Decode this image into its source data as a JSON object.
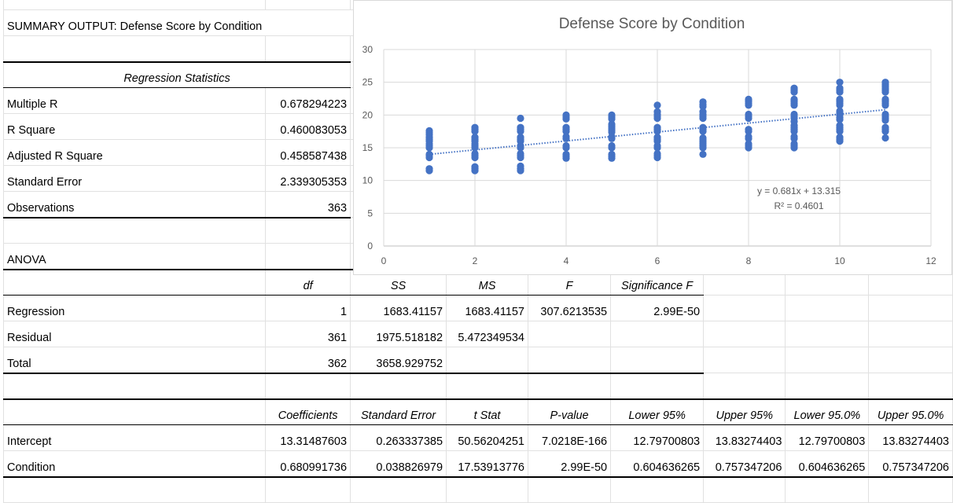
{
  "summary_title": "SUMMARY OUTPUT: Defense Score by Condition",
  "regression_statistics": {
    "header": "Regression Statistics",
    "rows": [
      {
        "label": "Multiple R",
        "value": "0.678294223"
      },
      {
        "label": "R Square",
        "value": "0.460083053"
      },
      {
        "label": "Adjusted R Square",
        "value": "0.458587438"
      },
      {
        "label": "Standard Error",
        "value": "2.339305353"
      },
      {
        "label": "Observations",
        "value": "363"
      }
    ]
  },
  "anova": {
    "label": "ANOVA",
    "headers": [
      "",
      "df",
      "SS",
      "MS",
      "F",
      "Significance F"
    ],
    "rows": [
      [
        "Regression",
        "1",
        "1683.41157",
        "1683.41157",
        "307.6213535",
        "2.99E-50"
      ],
      [
        "Residual",
        "361",
        "1975.518182",
        "5.472349534",
        "",
        ""
      ],
      [
        "Total",
        "362",
        "3658.929752",
        "",
        "",
        ""
      ]
    ]
  },
  "coefficients": {
    "headers": [
      "",
      "Coefficients",
      "Standard Error",
      "t Stat",
      "P-value",
      "Lower 95%",
      "Upper 95%",
      "Lower 95.0%",
      "Upper 95.0%"
    ],
    "rows": [
      [
        "Intercept",
        "13.31487603",
        "0.263337385",
        "50.56204251",
        "7.0218E-166",
        "12.79700803",
        "13.83274403",
        "12.79700803",
        "13.83274403"
      ],
      [
        "Condition",
        "0.680991736",
        "0.038826979",
        "17.53913776",
        "2.99E-50",
        "0.604636265",
        "0.757347206",
        "0.604636265",
        "0.757347206"
      ]
    ]
  },
  "chart_data": {
    "type": "scatter",
    "title": "Defense Score by Condition",
    "xlabel": "",
    "ylabel": "",
    "xlim": [
      0,
      12
    ],
    "ylim": [
      0,
      30
    ],
    "x_ticks": [
      "0",
      "2",
      "4",
      "6",
      "8",
      "10",
      "12"
    ],
    "y_ticks": [
      "0",
      "5",
      "10",
      "15",
      "20",
      "25",
      "30"
    ],
    "grid": true,
    "color": "#4472C4",
    "trendline": {
      "slope": 0.681,
      "intercept": 13.315,
      "x_range": [
        1,
        11
      ],
      "equation": "y = 0.681x + 13.315",
      "r2_label": "R² = 0.4601"
    },
    "points": [
      {
        "x": 1,
        "y": [
          11.5,
          11.8,
          13.5,
          13.8,
          14,
          15,
          15.3,
          15.6,
          16,
          16.3,
          16.6,
          17,
          17.3,
          17.6
        ]
      },
      {
        "x": 2,
        "y": [
          11.5,
          11.8,
          12.1,
          13.5,
          13.8,
          14.1,
          15,
          15.3,
          15.6,
          16,
          16.3,
          16.6,
          17.5,
          17.8,
          18.1
        ]
      },
      {
        "x": 3,
        "y": [
          11.5,
          11.8,
          12.2,
          13.5,
          13.8,
          14.1,
          15,
          15.3,
          16,
          16.3,
          16.6,
          17.5,
          17.8,
          18.1,
          19.5
        ]
      },
      {
        "x": 4,
        "y": [
          13.4,
          13.7,
          14,
          15,
          15.3,
          16.4,
          16.7,
          17.5,
          17.8,
          18.1,
          19.4,
          19.7,
          20
        ]
      },
      {
        "x": 5,
        "y": [
          13.4,
          13.7,
          14,
          15,
          15.3,
          16.4,
          16.7,
          17.4,
          17.7,
          18,
          18.3,
          18.6,
          19.4,
          19.7,
          20
        ]
      },
      {
        "x": 6,
        "y": [
          13.5,
          13.8,
          14.1,
          15,
          15.3,
          16,
          16.3,
          16.6,
          17.5,
          17.8,
          18.1,
          19.5,
          19.8,
          20.1,
          20.5,
          21.5
        ]
      },
      {
        "x": 7,
        "y": [
          14,
          15,
          15.3,
          15.6,
          15.9,
          16.2,
          16.5,
          17.5,
          17.8,
          18.1,
          19.5,
          19.8,
          20.1,
          20.5,
          21.3,
          21.6,
          22
        ]
      },
      {
        "x": 8,
        "y": [
          15,
          15.3,
          15.6,
          16.4,
          16.7,
          17.5,
          17.8,
          19.5,
          19.8,
          20.1,
          21.5,
          21.8,
          22.1,
          22.4
        ]
      },
      {
        "x": 9,
        "y": [
          15,
          15.3,
          15.6,
          16.4,
          16.7,
          17.5,
          17.8,
          18.1,
          18.4,
          19,
          19.5,
          19.8,
          20.1,
          21.5,
          21.8,
          22.1,
          22.4,
          23.5,
          23.8,
          24.1
        ]
      },
      {
        "x": 10,
        "y": [
          16,
          16.3,
          16.6,
          17.5,
          17.8,
          18.1,
          18.4,
          19.3,
          19.6,
          20,
          20.3,
          20.6,
          21.5,
          21.8,
          22.1,
          22.4,
          23.5,
          23.8,
          24.1,
          25
        ]
      },
      {
        "x": 11,
        "y": [
          16.5,
          17.5,
          17.8,
          18.1,
          19.2,
          19.5,
          19.8,
          20.1,
          21.5,
          21.8,
          22.1,
          22.4,
          23.5,
          23.8,
          24.1,
          24.4,
          24.7,
          25
        ]
      }
    ]
  }
}
